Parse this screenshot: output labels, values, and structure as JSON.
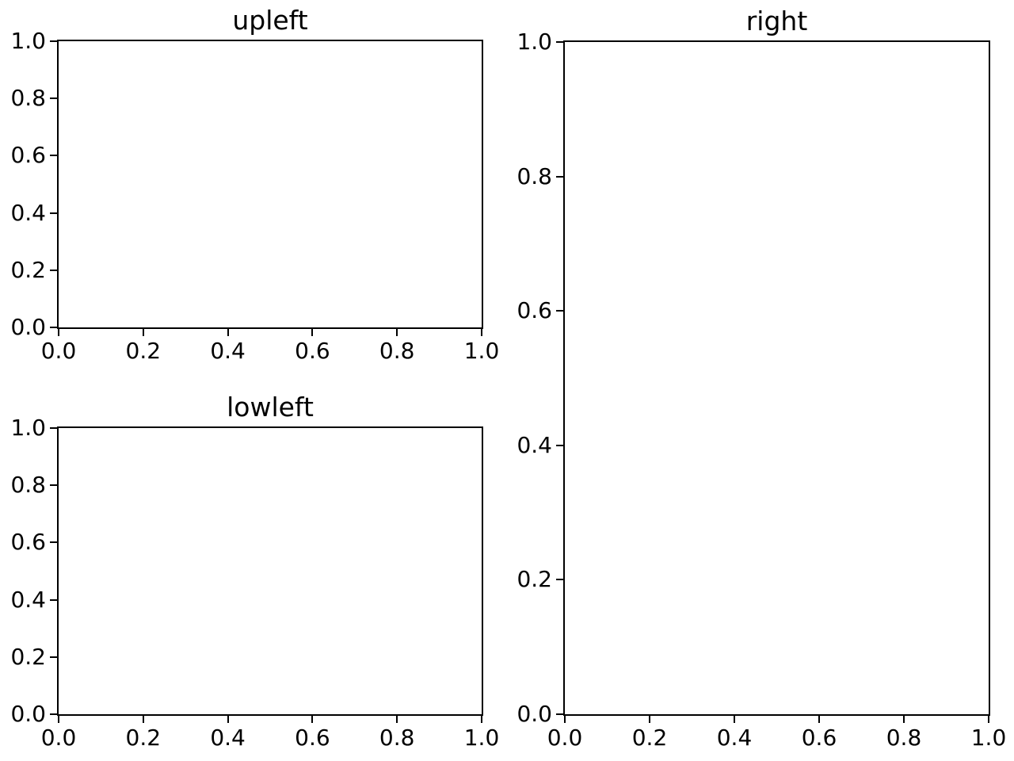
{
  "figure": {
    "background": "#ffffff",
    "spine_color": "#000000",
    "tick_color": "#000000",
    "text_color": "#000000"
  },
  "chart_data": [
    {
      "id": "upleft",
      "type": "line",
      "title": "upleft",
      "series": [],
      "xlim": [
        0.0,
        1.0
      ],
      "ylim": [
        0.0,
        1.0
      ],
      "xticks": [
        "0.0",
        "0.2",
        "0.4",
        "0.6",
        "0.8",
        "1.0"
      ],
      "yticks": [
        "0.0",
        "0.2",
        "0.4",
        "0.6",
        "0.8",
        "1.0"
      ],
      "grid": false,
      "legend": false
    },
    {
      "id": "lowleft",
      "type": "line",
      "title": "lowleft",
      "series": [],
      "xlim": [
        0.0,
        1.0
      ],
      "ylim": [
        0.0,
        1.0
      ],
      "xticks": [
        "0.0",
        "0.2",
        "0.4",
        "0.6",
        "0.8",
        "1.0"
      ],
      "yticks": [
        "0.0",
        "0.2",
        "0.4",
        "0.6",
        "0.8",
        "1.0"
      ],
      "grid": false,
      "legend": false
    },
    {
      "id": "right",
      "type": "line",
      "title": "right",
      "series": [],
      "xlim": [
        0.0,
        1.0
      ],
      "ylim": [
        0.0,
        1.0
      ],
      "xticks": [
        "0.0",
        "0.2",
        "0.4",
        "0.6",
        "0.8",
        "1.0"
      ],
      "yticks": [
        "0.0",
        "0.2",
        "0.4",
        "0.6",
        "0.8",
        "1.0"
      ],
      "grid": false,
      "legend": false
    }
  ]
}
